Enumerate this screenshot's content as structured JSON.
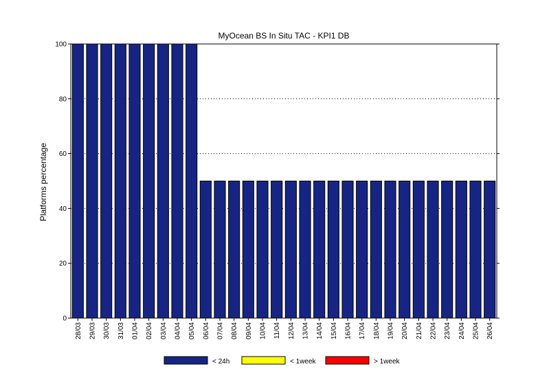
{
  "chart_data": {
    "type": "bar",
    "title": "MyOcean  BS In Situ TAC - KPI1  DB",
    "xlabel": "",
    "ylabel": "Platforms percentage",
    "ylim": [
      0,
      100
    ],
    "yticks": [
      0,
      20,
      40,
      60,
      80,
      100
    ],
    "grid": true,
    "legend_position": "bottom",
    "categories": [
      "28/03",
      "29/03",
      "30/03",
      "31/03",
      "01/04",
      "02/04",
      "03/04",
      "04/04",
      "05/04",
      "06/04",
      "07/04",
      "08/04",
      "09/04",
      "10/04",
      "11/04",
      "12/04",
      "13/04",
      "14/04",
      "15/04",
      "16/04",
      "17/04",
      "18/04",
      "19/04",
      "20/04",
      "21/04",
      "22/04",
      "23/04",
      "24/04",
      "25/04",
      "26/04"
    ],
    "series": [
      {
        "name": "< 24h",
        "color": "#162585",
        "values": [
          100,
          100,
          100,
          100,
          100,
          100,
          100,
          100,
          100,
          50,
          50,
          50,
          50,
          50,
          50,
          50,
          50,
          50,
          50,
          50,
          50,
          50,
          50,
          50,
          50,
          50,
          50,
          50,
          50,
          50
        ]
      },
      {
        "name": "< 1week",
        "color": "#ffff00",
        "values": [
          0,
          0,
          0,
          0,
          0,
          0,
          0,
          0,
          0,
          0,
          0,
          0,
          0,
          0,
          0,
          0,
          0,
          0,
          0,
          0,
          0,
          0,
          0,
          0,
          0,
          0,
          0,
          0,
          0,
          0
        ]
      },
      {
        "name": "> 1week",
        "color": "#ff0000",
        "values": [
          0,
          0,
          0,
          0,
          0,
          0,
          0,
          0,
          0,
          0,
          0,
          0,
          0,
          0,
          0,
          0,
          0,
          0,
          0,
          0,
          0,
          0,
          0,
          0,
          0,
          0,
          0,
          0,
          0,
          0
        ]
      }
    ]
  }
}
